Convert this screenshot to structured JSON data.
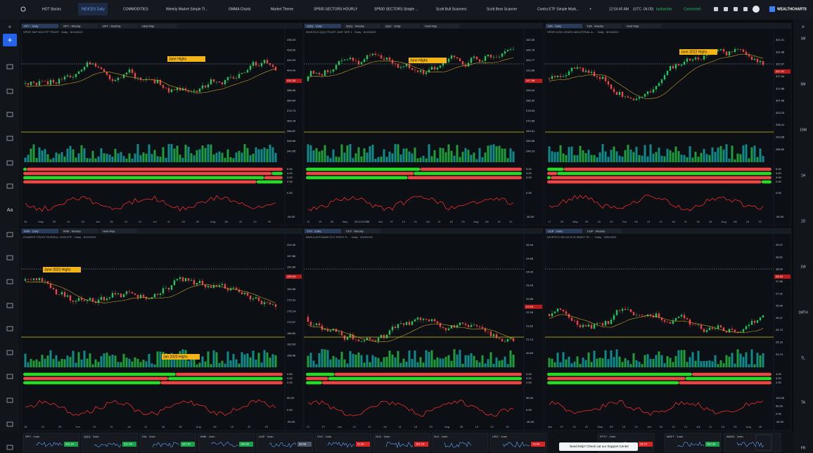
{
  "header": {
    "tabs": [
      "HOT Stocks",
      "INDICES Daily",
      "COMMODITIES",
      "Weekly Market Simple Tl...",
      "GMMA Charts",
      "Market Theme",
      "SP500 SECTORS HOURLY",
      "SP500 SECTORS Simple ...",
      "Scott Bull Scanners",
      "Scott Bear Scanner",
      "Contra ETF Simple Mark...",
      "+"
    ],
    "active_tab": "INDICES Daily",
    "clock": "12:54:40 AM",
    "timezone": "(UTC -04:00)",
    "user": "tashworks",
    "status": "Connected",
    "brand": "WEALTHCHARTS"
  },
  "toolbar": {
    "text_tool": "Aa"
  },
  "timeframes": [
    "1M",
    "5M",
    "15M",
    "1H",
    "1D",
    "1W",
    "1MTH",
    "TL",
    "TA",
    "FR"
  ],
  "panels": [
    {
      "tabs": [
        "SPY · Daily",
        "SPY · Weekly",
        "SPY · Monthly",
        "Heat Map"
      ],
      "title": "SPDR S&P 500 ETF TRUST · Daily · 8/19/2022",
      "annotations": [
        "June Highs"
      ],
      "price_labels": [
        "435.15",
        "428.20",
        "420.29",
        "404.40",
        "395.50",
        "388.55",
        "380.64",
        "372.73",
        "364.78",
        "356.87",
        "348.96",
        "340.95"
      ],
      "last_price": "411.35",
      "indicator_labels": [
        "5.00",
        "4.00",
        "3.00",
        "2.00"
      ],
      "oscillator_labels": [
        "0.00",
        "-50.00"
      ],
      "x_labels": [
        "25",
        "May",
        "09",
        "16",
        "23",
        "Jun",
        "06",
        "13",
        "21",
        "Jul",
        "11",
        "18",
        "25",
        "Aug",
        "08",
        "15",
        "22",
        "29"
      ]
    },
    {
      "tabs": [
        "QQQ · Daily",
        "QQQ · Weekly",
        "QQC · Daily",
        "Heat Map"
      ],
      "title": "INVESCO QQQ TRUST UNIT SER 1 · Daily · 8/19/2022",
      "annotations": [
        "June Highs"
      ],
      "price_labels": [
        "343.26",
        "334.76",
        "326.77",
        "310.86",
        "302.95",
        "295.04",
        "286.92",
        "278.93",
        "270.85",
        "263.01",
        "255.56",
        "246.19"
      ],
      "last_price": "317.08",
      "indicator_labels": [
        "5.00",
        "4.00",
        "3.00"
      ],
      "oscillator_labels": [
        "0.00",
        "-50.00"
      ],
      "x_labels": [
        "12",
        "19",
        "26",
        "May",
        "05/10/2022",
        "23",
        "Jun",
        "07",
        "14",
        "21",
        "Jul",
        "11",
        "18",
        "25",
        "Aug",
        "08",
        "15",
        "22"
      ]
    },
    {
      "tabs": [
        "DIA · Daily",
        "DIA · Weekly",
        "Heat Map"
      ],
      "title": "SPDR DOW JONES INDUSTRIAL A... · Daily · 8/19/2022",
      "annotations": [
        "June 2022 Highs"
      ],
      "price_labels": [
        "341.01",
        "331.68",
        "322.37",
        "317.64",
        "312.86",
        "307.96",
        "303.20",
        "298.41",
        "293.56",
        "288.60"
      ],
      "last_price": "327.01",
      "indicator_labels": [
        "5.00",
        "4.00",
        "3.00",
        "2.00"
      ],
      "oscillator_labels": [
        "0.00",
        "-50.00"
      ],
      "x_labels": [
        "17",
        "25",
        "May",
        "09",
        "16",
        "23",
        "Jun",
        "06",
        "13",
        "21",
        "Jul",
        "11",
        "18",
        "25",
        "Aug",
        "08",
        "15",
        "22"
      ]
    },
    {
      "tabs": [
        "IWM · Daily",
        "IWM · Weekly",
        "Heat Map"
      ],
      "title": "ISHARES TRUST RUSSELL 2000 ETF · Daily · 8/19/2022",
      "annotations": [
        "June 2022 Highs",
        "Jan 2020 Highs"
      ],
      "price_labels": [
        "204.30",
        "197.86",
        "191.80",
        "187.65",
        "183.58",
        "179.31",
        "175.14",
        "170.97",
        "166.80",
        "162.63",
        "158.46"
      ],
      "last_price": "190.19",
      "indicator_labels": [
        "4.00",
        "3.00",
        "2.00"
      ],
      "oscillator_labels": [
        "50.00",
        "0.00",
        "-50.00"
      ],
      "x_labels": [
        "16",
        "22",
        "29",
        "Jun",
        "13",
        "21",
        "Jul",
        "11",
        "18",
        "25",
        "Aug",
        "08",
        "15",
        "22",
        "29"
      ]
    },
    {
      "tabs": [
        "VXX · Daily",
        "VXX · Weekly"
      ],
      "title": "BARCLAYS BANK PLC IPATH S... · Daily · 8/19/2022",
      "annotations": [],
      "price_labels": [
        "25.44",
        "24.86",
        "24.00",
        "23.43",
        "22.86",
        "22.28",
        "21.62",
        "21.13",
        "20.64"
      ],
      "last_price": "21.94",
      "indicator_labels": [
        "4.00",
        "3.00",
        "2.00"
      ],
      "oscillator_labels": [
        "50.00",
        "0.00",
        "-50.00"
      ],
      "x_labels": [
        "21",
        "27",
        "Jun",
        "13",
        "21",
        "Jul",
        "11",
        "18",
        "25",
        "Aug",
        "08",
        "15",
        "22",
        "29"
      ]
    },
    {
      "tabs": [
        "UUP · Daily",
        "UUP · Weekly"
      ],
      "title": "INVESCO DB US DLR INDEX TR ... · Daily · 3/30/2022",
      "annotations": [],
      "price_labels": [
        "29.07",
        "28.81",
        "28.00",
        "27.86",
        "27.31",
        "26.90",
        "26.47",
        "25.73",
        "25.23",
        "23.74"
      ],
      "last_price": "28.43",
      "indicator_labels": [
        "4.00",
        "3.00",
        "2.00"
      ],
      "oscillator_labels": [
        "100.00",
        "50.00",
        "0.00",
        "-50.00"
      ],
      "x_labels": [
        "Apr",
        "07",
        "14",
        "22",
        "May",
        "09",
        "16",
        "23",
        "Jun",
        "06",
        "13",
        "21",
        "Jul",
        "11",
        "18",
        "25",
        "Aug",
        "08"
      ]
    }
  ],
  "tickers": [
    {
      "name": "SPY · 1min",
      "price": "411.24",
      "color": "#16a34a"
    },
    {
      "name": "QQQ · 1min",
      "price": "317.04",
      "color": "#16a34a"
    },
    {
      "name": "DIA · 1min",
      "price": "327.97",
      "color": "#16a34a"
    },
    {
      "name": "IWM · 1min",
      "price": "190.20",
      "color": "#16a34a"
    },
    {
      "name": "UUP · 1min",
      "price": "28.48",
      "color": "#4b5563"
    },
    {
      "name": "VXX · 1min",
      "price": "21.87",
      "color": "#dc2626"
    },
    {
      "name": "GLD · 1min",
      "price": "167.10",
      "color": "#dc2626"
    },
    {
      "name": "SLV · 1min"
    },
    {
      "name": "USO · 1min",
      "price": "73.49",
      "color": "#dc2626"
    },
    {
      "name": "FFTY · 1min",
      "price": "28.73",
      "color": "#dc2626"
    },
    {
      "name": "MSFT · 1min",
      "price": "282.35",
      "color": "#16a34a"
    },
    {
      "name": "AMZN · 1min"
    }
  ],
  "support": "Need help? Check out our Support Center"
}
